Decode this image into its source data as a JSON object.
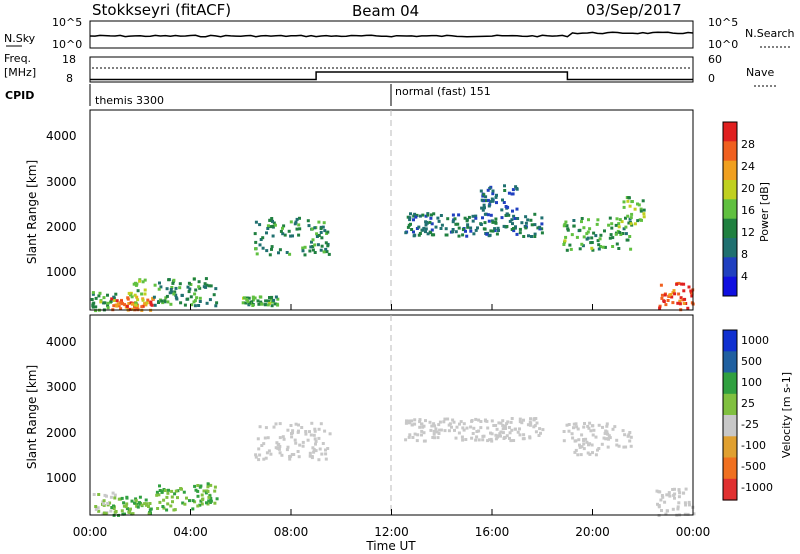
{
  "header": {
    "station": "Stokkseyri (fitACF)",
    "beam": "Beam 04",
    "date": "03/Sep/2017"
  },
  "noise_panel": {
    "left_label": "N.Sky",
    "left_ticks": [
      "10^5",
      "10^0"
    ],
    "right_label": "N.Search",
    "right_ticks": [
      "10^5",
      "10^0"
    ]
  },
  "freq_panel": {
    "left_label_1": "Freq.",
    "left_label_2": "[MHz]",
    "left_ticks": [
      "18",
      "8"
    ],
    "right_label": "Nave",
    "right_ticks": [
      "60",
      "0"
    ]
  },
  "cpid_panel": {
    "label": "CPID",
    "modes": [
      "themis 3300",
      "normal (fast) 151"
    ]
  },
  "power_panel": {
    "ylabel": "Slant Range [km]",
    "yticks": [
      "4000",
      "3000",
      "2000",
      "1000"
    ],
    "colorbar_label": "Power [dB]",
    "colorbar_ticks": [
      "28",
      "24",
      "20",
      "16",
      "12",
      "8",
      "4"
    ],
    "colors": [
      "#1010e0",
      "#2040c0",
      "#207070",
      "#208040",
      "#60c040",
      "#c0d020",
      "#f0a020",
      "#f06020",
      "#e02020"
    ]
  },
  "velocity_panel": {
    "ylabel": "Slant Range [km]",
    "yticks": [
      "4000",
      "3000",
      "2000",
      "1000"
    ],
    "colorbar_label": "Velocity [m s-1]",
    "colorbar_ticks": [
      "1000",
      "500",
      "100",
      "25",
      "-25",
      "-100",
      "-500",
      "-1000"
    ],
    "colors": [
      "#1030d0",
      "#2060a0",
      "#30a040",
      "#80c040",
      "#c8c8c8",
      "#e0a030",
      "#f07020",
      "#e03030"
    ]
  },
  "x_axis": {
    "ticks": [
      "00:00",
      "04:00",
      "08:00",
      "12:00",
      "16:00",
      "20:00",
      "00:00"
    ],
    "label": "Time UT"
  },
  "chart_data": {
    "type": "heatmap",
    "x_unit": "hours UT",
    "x_range": [
      0,
      24
    ],
    "y_range_km": [
      180,
      4500
    ],
    "cpid_switch_hour": 12,
    "freq_steps": [
      [
        0,
        9,
        9
      ],
      [
        9,
        19,
        12
      ],
      [
        19,
        24,
        9
      ]
    ],
    "power_regions": [
      {
        "t": [
          0,
          1
        ],
        "r": [
          200,
          600
        ],
        "dB": 12
      },
      {
        "t": [
          0.8,
          2.5
        ],
        "r": [
          200,
          500
        ],
        "dB": 24
      },
      {
        "t": [
          1.5,
          2.3
        ],
        "r": [
          300,
          900
        ],
        "dB": 16
      },
      {
        "t": [
          2.5,
          5
        ],
        "r": [
          300,
          900
        ],
        "dB": 10
      },
      {
        "t": [
          6,
          7.5
        ],
        "r": [
          300,
          500
        ],
        "dB": 12
      },
      {
        "t": [
          6.5,
          9.5
        ],
        "r": [
          1400,
          2200
        ],
        "dB": 10
      },
      {
        "t": [
          12.5,
          18
        ],
        "r": [
          1800,
          2300
        ],
        "dB": 8
      },
      {
        "t": [
          15.5,
          17
        ],
        "r": [
          2300,
          2900
        ],
        "dB": 6
      },
      {
        "t": [
          18.8,
          21.5
        ],
        "r": [
          1500,
          2200
        ],
        "dB": 12
      },
      {
        "t": [
          21,
          22
        ],
        "r": [
          2000,
          2700
        ],
        "dB": 14
      },
      {
        "t": [
          22.5,
          24
        ],
        "r": [
          200,
          800
        ],
        "dB": 26
      }
    ],
    "velocity_regions": [
      {
        "t": [
          0,
          1
        ],
        "r": [
          200,
          700
        ],
        "v": 25
      },
      {
        "t": [
          0.8,
          2.5
        ],
        "r": [
          200,
          600
        ],
        "v": 100
      },
      {
        "t": [
          2.5,
          5
        ],
        "r": [
          300,
          900
        ],
        "v": 100
      },
      {
        "t": [
          6.5,
          9.5
        ],
        "r": [
          1400,
          2200
        ],
        "v": 0
      },
      {
        "t": [
          12.5,
          18
        ],
        "r": [
          1800,
          2300
        ],
        "v": 0
      },
      {
        "t": [
          18.8,
          21.5
        ],
        "r": [
          1500,
          2200
        ],
        "v": 0
      },
      {
        "t": [
          22.5,
          24
        ],
        "r": [
          200,
          800
        ],
        "v": 0
      }
    ]
  }
}
